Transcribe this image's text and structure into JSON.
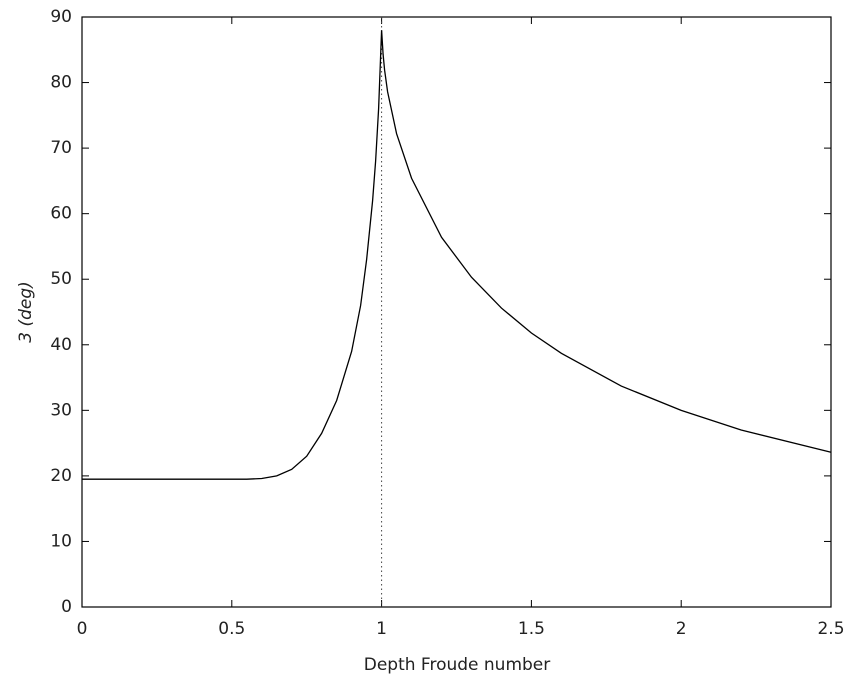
{
  "chart_data": {
    "type": "line",
    "xlabel": "Depth Froude number",
    "ylabel": "3 (deg)",
    "x": [
      0,
      0.25,
      0.5,
      0.55,
      0.6,
      0.65,
      0.7,
      0.75,
      0.8,
      0.85,
      0.9,
      0.93,
      0.95,
      0.97,
      0.98,
      0.99,
      1.0,
      1.005,
      1.01,
      1.02,
      1.05,
      1.1,
      1.2,
      1.3,
      1.4,
      1.5,
      1.6,
      1.8,
      2.0,
      2.2,
      2.5
    ],
    "series": [
      {
        "color": "#000000",
        "values": [
          19.5,
          19.5,
          19.5,
          19.5,
          19.6,
          20,
          21,
          23,
          26.5,
          31.5,
          39,
          46,
          53,
          62,
          68,
          76,
          88,
          84.3,
          81.9,
          78.6,
          72.2,
          65.4,
          56.4,
          50.3,
          45.6,
          41.8,
          38.7,
          33.7,
          30,
          27,
          23.6
        ]
      }
    ],
    "vline": {
      "x": 1,
      "style": "dotted"
    },
    "xlim": [
      0,
      2.5
    ],
    "xticks": [
      0,
      0.5,
      1,
      1.5,
      2,
      2.5
    ],
    "ylim": [
      0,
      90
    ],
    "yticks": [
      0,
      10,
      20,
      30,
      40,
      50,
      60,
      70,
      80,
      90
    ],
    "grid": false
  }
}
